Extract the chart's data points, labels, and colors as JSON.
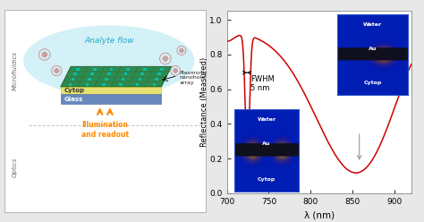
{
  "fig_width": 4.74,
  "fig_height": 2.48,
  "dpi": 100,
  "bg_color": "#e8e8e8",
  "left_panel": {
    "microfluidics_label": "Microfluidics",
    "optics_label": "Optics",
    "analyte_flow_label": "Analyte flow",
    "cytop_label": "Cytop",
    "glass_label": "Glass",
    "plasmonic_label": "Plasmonic\nnanohole\narray",
    "illumination_label": "Illumination\nand readout"
  },
  "right_panel": {
    "xlabel": "λ (nm)",
    "ylabel": "Reflectance (Measured)",
    "xlim": [
      700,
      920
    ],
    "ylim": [
      0.0,
      1.05
    ],
    "xticks": [
      700,
      750,
      800,
      850,
      900
    ],
    "yticks": [
      0.0,
      0.2,
      0.4,
      0.6,
      0.8,
      1.0
    ],
    "fwhm_label": "FWHM\n5 nm",
    "line_color": "#cc0000",
    "annotation_color": "#999999"
  }
}
